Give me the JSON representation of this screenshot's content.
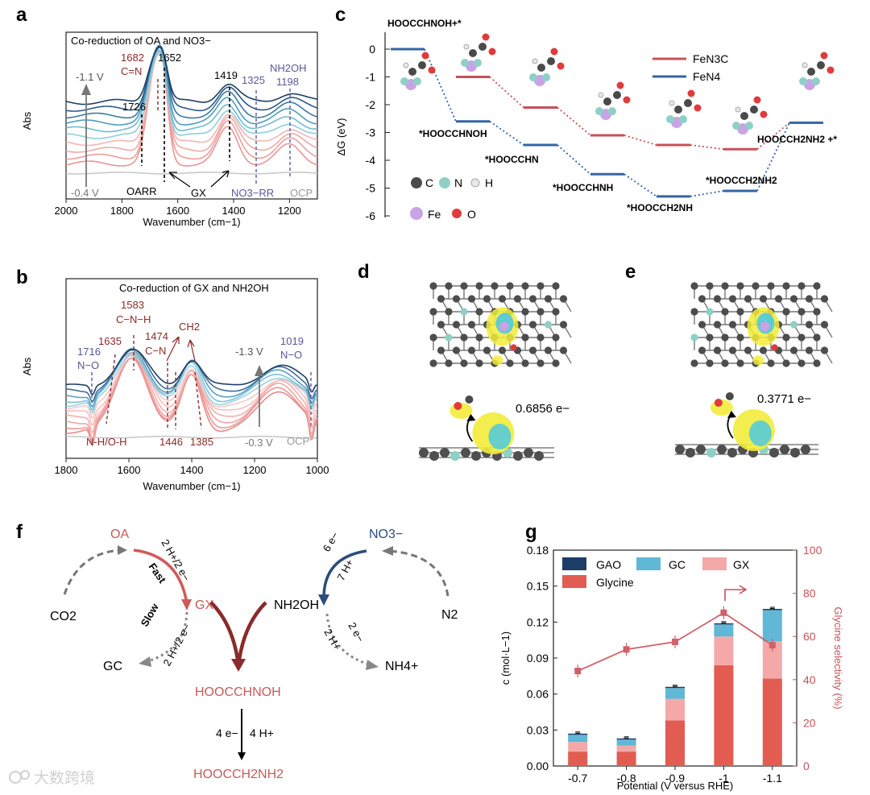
{
  "panel_labels": [
    "a",
    "b",
    "c",
    "d",
    "e",
    "f",
    "g"
  ],
  "colors": {
    "red": "#e25c52",
    "pink": "#f4a9a8",
    "cyan": "#60b8d6",
    "navy": "#1c3d67",
    "dark_red": "#8b2a2a",
    "violet": "#58589a",
    "grey": "#a8a8a8"
  },
  "watermark": "大数跨境",
  "chart_data": [
    {
      "panel": "a",
      "type": "line",
      "title": "Co-reduction of OA and NO3−",
      "xlabel": "Wavenumber (cm−1)",
      "ylabel": "Abs",
      "xlim": [
        2000,
        1100
      ],
      "x_ticks": [
        "2000",
        "1800",
        "1600",
        "1400",
        "1200"
      ],
      "potential_top": "-1.1 V",
      "potential_bottom": "-0.4 V",
      "reference": "OCP",
      "series_count": 10,
      "peaks": [
        {
          "wavenumber": 1726,
          "label": "1726",
          "assignment": ""
        },
        {
          "wavenumber": 1682,
          "label": "1682",
          "assignment": "C=N"
        },
        {
          "wavenumber": 1652,
          "label": "1652",
          "assignment": ""
        },
        {
          "wavenumber": 1419,
          "label": "1419",
          "assignment": ""
        },
        {
          "wavenumber": 1325,
          "label": "1325",
          "assignment": ""
        },
        {
          "wavenumber": 1198,
          "label": "1198",
          "assignment": "NH2OH"
        }
      ],
      "regions": [
        "OARR",
        "GX",
        "NO3−RR"
      ]
    },
    {
      "panel": "b",
      "type": "line",
      "title": "Co-reduction of GX and NH2OH",
      "xlabel": "Wavenumber (cm−1)",
      "ylabel": "Abs",
      "xlim": [
        1800,
        1000
      ],
      "x_ticks": [
        "1800",
        "1600",
        "1400",
        "1200",
        "1000"
      ],
      "potential_top": "-1.3 V",
      "potential_bottom": "-0.3 V",
      "reference": "OCP",
      "series_count": 11,
      "peaks": [
        {
          "wavenumber": 1716,
          "label": "1716",
          "assignment": "N−O"
        },
        {
          "wavenumber": 1635,
          "label": "1635",
          "assignment": ""
        },
        {
          "wavenumber": 1583,
          "label": "1583",
          "assignment": "C−N−H"
        },
        {
          "wavenumber": 1474,
          "label": "1474",
          "assignment": "C−N"
        },
        {
          "wavenumber": 1446,
          "label": "1446",
          "assignment": ""
        },
        {
          "wavenumber": 1385,
          "label": "1385",
          "assignment": ""
        },
        {
          "wavenumber": 1019,
          "label": "1019",
          "assignment": "N−O"
        }
      ],
      "extra_labels": [
        "N-H/O-H",
        "CH2"
      ]
    },
    {
      "panel": "c",
      "type": "line",
      "title": "",
      "xlabel": "",
      "ylabel": "ΔG (eV)",
      "ylim": [
        -6,
        0.5
      ],
      "y_ticks": [
        "0",
        "-1",
        "-2",
        "-3",
        "-4",
        "-5",
        "-6"
      ],
      "steps": [
        "HOOCCHNOH+*",
        "*HOOCCHNOH",
        "*HOOCCHN",
        "*HOOCCHNH",
        "*HOOCCH2NH",
        "*HOOCCH2NH2",
        "HOOCCH2NH2 +*"
      ],
      "series": [
        {
          "name": "FeN3C",
          "values": [
            0,
            -1.0,
            -2.1,
            -3.1,
            -3.45,
            -3.6,
            -2.65
          ]
        },
        {
          "name": "FeN4",
          "values": [
            0,
            -2.6,
            -3.45,
            -4.5,
            -5.3,
            -5.1,
            -2.65
          ]
        }
      ],
      "atom_legend": [
        "C",
        "N",
        "H",
        "Fe",
        "O"
      ]
    },
    {
      "panel": "g",
      "type": "bar",
      "xlabel": "Potential (V versus RHE)",
      "ylabel": "c (mol·L−1)",
      "ylim": [
        0,
        0.18
      ],
      "y2label": "Glycine selectivity (%)",
      "y2lim": [
        0,
        100
      ],
      "y_ticks": [
        "0.00",
        "0.03",
        "0.06",
        "0.09",
        "0.12",
        "0.15",
        "0.18"
      ],
      "y2_ticks": [
        "0",
        "20",
        "40",
        "60",
        "80",
        "100"
      ],
      "categories": [
        "-0.7",
        "-0.8",
        "-0.9",
        "-1",
        "-1.1"
      ],
      "series": [
        {
          "name": "Glycine",
          "values": [
            0.012,
            0.012,
            0.038,
            0.084,
            0.073
          ]
        },
        {
          "name": "GX",
          "values": [
            0.008,
            0.005,
            0.018,
            0.024,
            0.031
          ]
        },
        {
          "name": "GC",
          "values": [
            0.006,
            0.005,
            0.009,
            0.01,
            0.026
          ]
        },
        {
          "name": "GAO",
          "values": [
            0.001,
            0.001,
            0.001,
            0.001,
            0.001
          ]
        }
      ],
      "selectivity": [
        44,
        54,
        57.5,
        71,
        56
      ]
    }
  ],
  "panel_d": {
    "charge": "0.6856 e−"
  },
  "panel_e": {
    "charge": "0.3771 e−"
  },
  "panel_f": {
    "co2": "CO2",
    "oa": "OA",
    "gx": "GX",
    "gc": "GC",
    "fast": "Fast",
    "slow": "Slow",
    "h_fast": "2 H+/2 e−",
    "h_slow": "2 H+/2 e−",
    "n2": "N2",
    "no3": "NO3−",
    "nh2oh": "NH2OH",
    "nh4": "NH4+",
    "e6": "6 e−",
    "h7": "7 H+",
    "e2": "2 e−",
    "h2": "2 H+",
    "intermediate": "HOOCCHNOH",
    "e4": "4 e−",
    "h4": "4 H+",
    "product": "HOOCCH2NH2"
  }
}
